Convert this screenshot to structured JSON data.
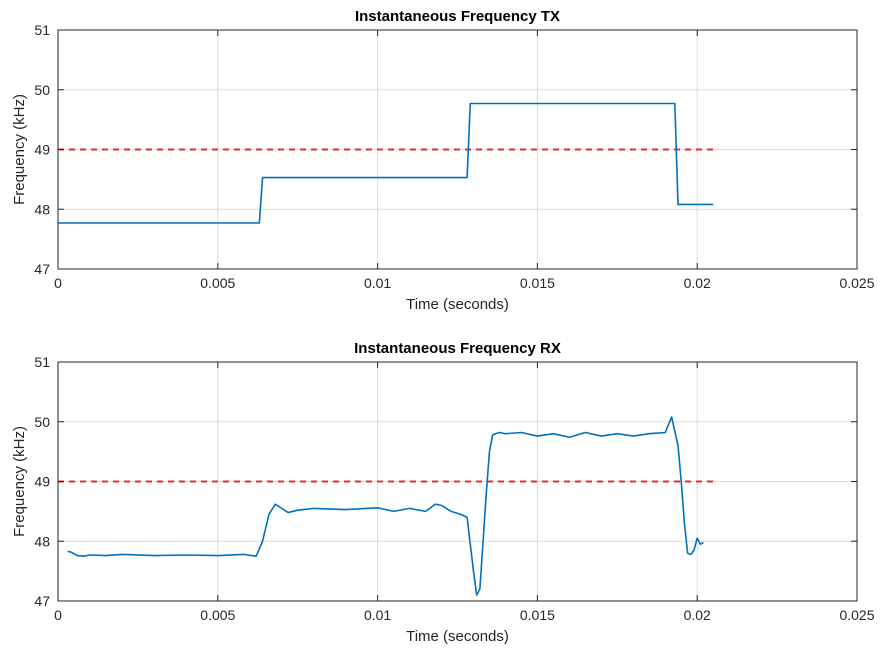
{
  "colors": {
    "series": "#0072bd",
    "threshold": "#e03030",
    "grid": "#dcdcdc",
    "axis": "#262626"
  },
  "chart_data": [
    {
      "type": "line",
      "title": "Instantaneous Frequency TX",
      "xlabel": "Time (seconds)",
      "ylabel": "Frequency (kHz)",
      "xlim": [
        0,
        0.025
      ],
      "ylim": [
        47,
        51
      ],
      "xticks": [
        0,
        0.005,
        0.01,
        0.015,
        0.02,
        0.025
      ],
      "xtick_labels": [
        "0",
        "0.005",
        "0.01",
        "0.015",
        "0.02",
        "0.025"
      ],
      "yticks": [
        47,
        48,
        49,
        50,
        51
      ],
      "ytick_labels": [
        "47",
        "48",
        "49",
        "50",
        "51"
      ],
      "grid": true,
      "threshold": 49,
      "series": [
        {
          "x": [
            0,
            0.0063,
            0.0064,
            0.0128,
            0.0129,
            0.0193,
            0.0194,
            0.0205
          ],
          "y": [
            47.77,
            47.77,
            48.53,
            48.53,
            49.77,
            49.77,
            48.08,
            48.08
          ]
        }
      ]
    },
    {
      "type": "line",
      "title": "Instantaneous Frequency RX",
      "xlabel": "Time (seconds)",
      "ylabel": "Frequency (kHz)",
      "xlim": [
        0,
        0.025
      ],
      "ylim": [
        47,
        51
      ],
      "xticks": [
        0,
        0.005,
        0.01,
        0.015,
        0.02,
        0.025
      ],
      "xtick_labels": [
        "0",
        "0.005",
        "0.01",
        "0.015",
        "0.02",
        "0.025"
      ],
      "yticks": [
        47,
        48,
        49,
        50,
        51
      ],
      "ytick_labels": [
        "47",
        "48",
        "49",
        "50",
        "51"
      ],
      "grid": true,
      "threshold": 49,
      "series": [
        {
          "x": [
            0.0003,
            0.0004,
            0.0006,
            0.0008,
            0.001,
            0.0015,
            0.002,
            0.003,
            0.004,
            0.005,
            0.0058,
            0.0062,
            0.0064,
            0.0066,
            0.0068,
            0.007,
            0.0072,
            0.0075,
            0.008,
            0.009,
            0.01,
            0.0105,
            0.011,
            0.0115,
            0.0118,
            0.012,
            0.0123,
            0.0126,
            0.0128,
            0.013,
            0.0131,
            0.0132,
            0.0133,
            0.0134,
            0.0135,
            0.0136,
            0.0138,
            0.014,
            0.0145,
            0.015,
            0.0155,
            0.016,
            0.0165,
            0.017,
            0.0175,
            0.018,
            0.0185,
            0.019,
            0.0192,
            0.0194,
            0.0195,
            0.0196,
            0.0197,
            0.0198,
            0.0199,
            0.02,
            0.0201,
            0.0202
          ],
          "y": [
            47.83,
            47.82,
            47.76,
            47.75,
            47.77,
            47.76,
            47.78,
            47.76,
            47.77,
            47.76,
            47.78,
            47.75,
            48.0,
            48.45,
            48.62,
            48.55,
            48.48,
            48.52,
            48.55,
            48.53,
            48.56,
            48.5,
            48.55,
            48.5,
            48.62,
            48.6,
            48.5,
            48.45,
            48.4,
            47.5,
            47.1,
            47.2,
            48.0,
            48.8,
            49.5,
            49.78,
            49.82,
            49.8,
            49.82,
            49.76,
            49.8,
            49.74,
            49.82,
            49.76,
            49.8,
            49.76,
            49.8,
            49.82,
            50.08,
            49.6,
            49.0,
            48.3,
            47.8,
            47.78,
            47.85,
            48.05,
            47.95,
            47.98
          ]
        }
      ]
    }
  ]
}
